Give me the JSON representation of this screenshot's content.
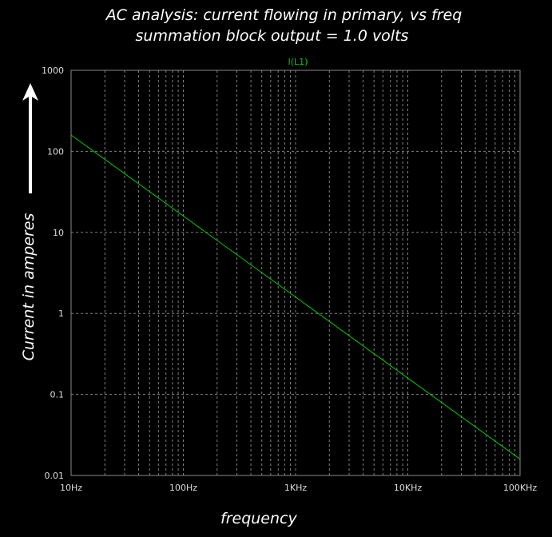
{
  "title_line1": "AC analysis: current flowing in primary, vs freq",
  "title_line2": "summation block output = 1.0 volts",
  "chart_data": {
    "type": "line",
    "x_scale": "log",
    "y_scale": "log",
    "xlim": [
      10,
      100000
    ],
    "ylim": [
      0.01,
      1000
    ],
    "xlabel": "frequency",
    "ylabel": "Current in amperes",
    "x_ticks": [
      10,
      100,
      1000,
      10000,
      100000
    ],
    "x_tick_labels": [
      "10Hz",
      "100Hz",
      "1KHz",
      "10KHz",
      "100KHz"
    ],
    "y_ticks": [
      1000,
      100,
      10,
      1,
      0.1,
      0.01
    ],
    "y_tick_labels": [
      "1000",
      "100",
      "10",
      "1",
      "0.1",
      "0.01"
    ],
    "grid": true,
    "series": [
      {
        "name": "I(L1)",
        "color": "#00cc00",
        "x": [
          10,
          100,
          1000,
          10000,
          100000
        ],
        "y": [
          159,
          15.9,
          1.59,
          0.159,
          0.0159
        ]
      }
    ]
  },
  "colors": {
    "background": "#000000",
    "grid": "#808080",
    "trace": "#00cc00",
    "legend_text": "#00cc00",
    "text": "#ffffff"
  }
}
